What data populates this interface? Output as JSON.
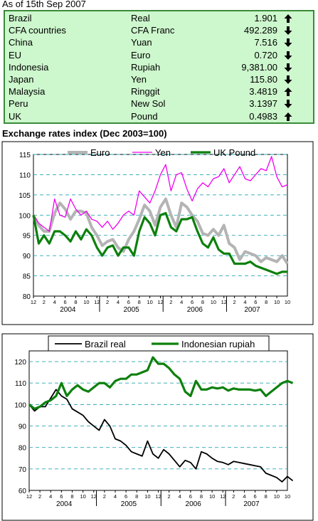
{
  "as_of": "As of 15th Sep 2007",
  "rates": [
    {
      "country": "Brazil",
      "currency": "Real",
      "value": "1.901",
      "direction": "up"
    },
    {
      "country": "CFA countries",
      "currency": "CFA Franc",
      "value": "492.289",
      "direction": "down"
    },
    {
      "country": "China",
      "currency": "Yuan",
      "value": "7.516",
      "direction": "down"
    },
    {
      "country": "EU",
      "currency": "Euro",
      "value": "0.720",
      "direction": "down"
    },
    {
      "country": "Indonesia",
      "currency": "Rupiah",
      "value": "9,381.00",
      "direction": "down"
    },
    {
      "country": "Japan",
      "currency": "Yen",
      "value": "115.80",
      "direction": "down"
    },
    {
      "country": "Malaysia",
      "currency": "Ringgit",
      "value": "3.4819",
      "direction": "up"
    },
    {
      "country": "Peru",
      "currency": "New Sol",
      "value": "3.1397",
      "direction": "down"
    },
    {
      "country": "UK",
      "currency": "Pound",
      "value": "0.4983",
      "direction": "up"
    }
  ],
  "index_title": "Exchange rates index (Dec 2003=100)",
  "chart_data": [
    {
      "type": "line",
      "ylim": [
        80,
        115
      ],
      "yticks": [
        80,
        85,
        90,
        95,
        100,
        105,
        110,
        115
      ],
      "grid": "horizontal dashed",
      "legend": "top",
      "x_start": "2003-12",
      "month_ticks": [
        "12",
        "2",
        "4",
        "6",
        "8",
        "10",
        "12",
        "2",
        "4",
        "6",
        "8",
        "10",
        "12",
        "2",
        "4",
        "6",
        "8",
        "10",
        "12",
        "2",
        "4",
        "6",
        "8",
        "10"
      ],
      "year_labels": [
        "2004",
        "2005",
        "2006",
        "2007"
      ],
      "series": [
        {
          "name": "Euro",
          "color": "#b4b4b4",
          "width": 4,
          "values": [
            100,
            97.5,
            96,
            96,
            100.5,
            103,
            101.5,
            99,
            101,
            101,
            100.5,
            97,
            95,
            92.5,
            93.5,
            94,
            92,
            91,
            94,
            96,
            99,
            102.5,
            101,
            97.5,
            102,
            104,
            100,
            97,
            103,
            102,
            100,
            98.5,
            95.5,
            95,
            96.5,
            95,
            97.5,
            93,
            92,
            89,
            91,
            90.5,
            90,
            88.5,
            89.5,
            89,
            88.5,
            90,
            88
          ]
        },
        {
          "name": "Yen",
          "color": "#f000f0",
          "width": 1.3,
          "values": [
            100,
            98,
            97,
            96,
            104,
            100,
            99.5,
            104,
            101.5,
            100,
            101,
            99,
            98.5,
            97,
            98.5,
            96.5,
            98,
            100,
            101,
            100,
            106,
            104.5,
            103,
            106,
            110,
            112.5,
            106,
            110,
            110.5,
            106.5,
            103.5,
            106.5,
            108,
            107,
            109,
            109.5,
            111.5,
            108,
            110,
            112,
            109,
            108.5,
            110,
            111.5,
            111,
            114.5,
            109.5,
            107,
            107.5
          ]
        },
        {
          "name": "UK Pound",
          "color": "#0d800d",
          "width": 3.2,
          "values": [
            100,
            93,
            95,
            93,
            96,
            96,
            95,
            93.5,
            96,
            94,
            96.5,
            95,
            92,
            90,
            92,
            92.5,
            90,
            92,
            92,
            90,
            96,
            99.5,
            98,
            95,
            100,
            100.5,
            97,
            96,
            99,
            99,
            99.5,
            96,
            93,
            92,
            94.5,
            91.5,
            90.5,
            90.5,
            88,
            88,
            88,
            88.5,
            87.5,
            87,
            86.5,
            86,
            85.5,
            86,
            86
          ]
        }
      ]
    },
    {
      "type": "line",
      "ylim": [
        60,
        125
      ],
      "yticks": [
        60,
        70,
        80,
        90,
        100,
        110,
        120
      ],
      "grid": "horizontal dashed",
      "legend": "top",
      "x_start": "2003-12",
      "month_ticks": [
        "12",
        "2",
        "4",
        "6",
        "8",
        "10",
        "12",
        "2",
        "4",
        "6",
        "8",
        "10",
        "12",
        "2",
        "4",
        "6",
        "8",
        "10",
        "12",
        "2",
        "4",
        "6",
        "8",
        "10"
      ],
      "year_labels": [
        "2004",
        "2005",
        "2006",
        "2007"
      ],
      "series": [
        {
          "name": "Brazil real",
          "color": "#000000",
          "width": 1.8,
          "values": [
            100,
            97,
            99,
            99,
            103,
            107,
            104,
            102.5,
            98,
            96.5,
            95,
            92,
            90,
            88,
            93,
            90,
            84,
            83,
            81,
            78,
            77,
            76,
            83,
            77,
            75,
            79,
            77,
            74,
            71,
            74,
            73,
            70,
            78,
            77,
            75,
            73.5,
            73,
            72,
            73.5,
            73,
            72.5,
            72,
            71.5,
            71,
            68,
            67,
            66,
            64,
            66.5,
            64.5
          ]
        },
        {
          "name": "Indonesian rupiah",
          "color": "#0d800d",
          "width": 3.2,
          "values": [
            100,
            98,
            99,
            101,
            102,
            104,
            110,
            104,
            107,
            109,
            107,
            106,
            108,
            110,
            110,
            108,
            111,
            112,
            112,
            114,
            114,
            115,
            116,
            122,
            119,
            119,
            117,
            114,
            112,
            106,
            104,
            111,
            107,
            107,
            108,
            107.5,
            108,
            106.5,
            107.5,
            107,
            107,
            107,
            106.5,
            107,
            104,
            106,
            108,
            110,
            111,
            110
          ]
        }
      ]
    }
  ]
}
